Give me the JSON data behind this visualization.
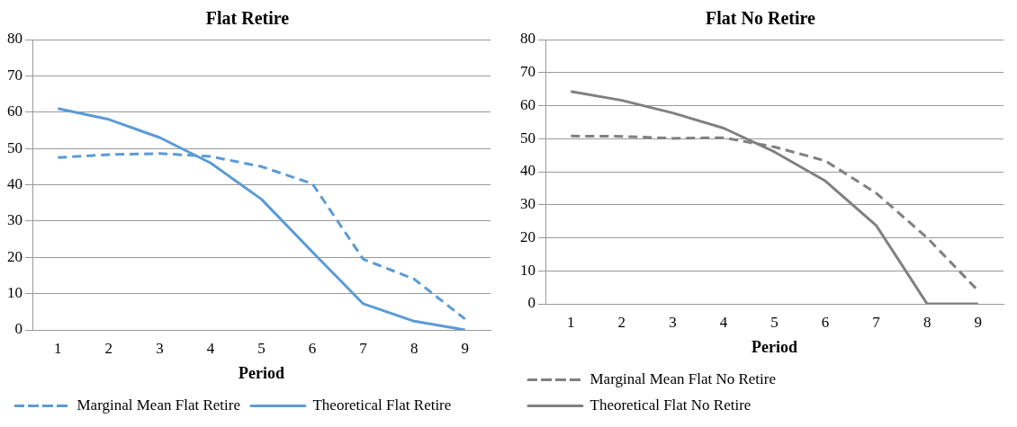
{
  "chart_data": [
    {
      "type": "line",
      "title": "Flat Retire",
      "xlabel": "Period",
      "categories": [
        "1",
        "2",
        "3",
        "4",
        "5",
        "6",
        "7",
        "8",
        "9"
      ],
      "series": [
        {
          "name": "Marginal Mean Flat Retire",
          "color": "#5b9bd5",
          "line_style": "dashed",
          "values": [
            47.5,
            48.3,
            48.6,
            47.8,
            45,
            40.3,
            19.5,
            14,
            3
          ]
        },
        {
          "name": "Theoretical Flat Retire",
          "color": "#5b9bd5",
          "line_style": "solid",
          "values": [
            61,
            58,
            53,
            46,
            36,
            21.5,
            7.2,
            2.4,
            0
          ]
        }
      ],
      "ylim": [
        0,
        80
      ],
      "yticks": [
        0,
        10,
        20,
        30,
        40,
        50,
        60,
        70,
        80
      ],
      "grid": "y",
      "legend": "bottom",
      "marker": "none"
    },
    {
      "type": "line",
      "title": "Flat No Retire",
      "xlabel": "Period",
      "categories": [
        "1",
        "2",
        "3",
        "4",
        "5",
        "6",
        "7",
        "8",
        "9"
      ],
      "series": [
        {
          "name": "Marginal Mean Flat No Retire",
          "color": "#808080",
          "line_style": "dashed",
          "values": [
            50.8,
            50.7,
            50.1,
            50.3,
            47.5,
            43.3,
            33.5,
            20,
            4
          ]
        },
        {
          "name": "Theoretical Flat No Retire",
          "color": "#808080",
          "line_style": "solid",
          "values": [
            64.3,
            61.6,
            57.8,
            53.2,
            46,
            37.2,
            23.7,
            0,
            0
          ]
        }
      ],
      "ylim": [
        0,
        80
      ],
      "yticks": [
        0,
        10,
        20,
        30,
        40,
        50,
        60,
        70,
        80
      ],
      "grid": "y",
      "legend": "bottom",
      "marker": "none"
    }
  ]
}
